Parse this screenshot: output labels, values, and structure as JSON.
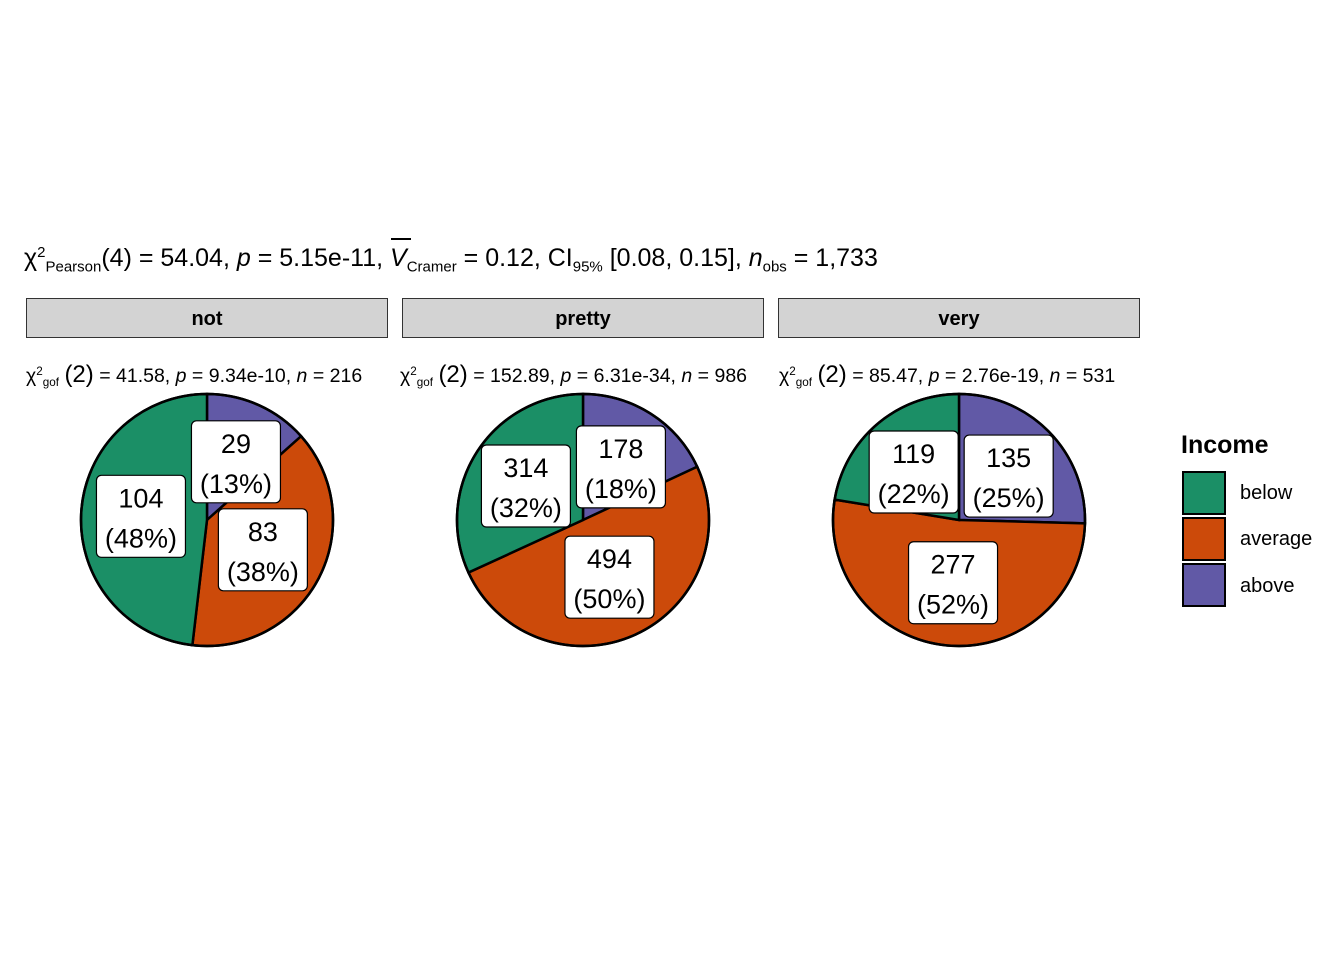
{
  "chart_data": {
    "type": "pie",
    "subtitle": {
      "stat_symbol": "χ",
      "stat_sup": "2",
      "stat_sub": "Pearson",
      "df": "(4)",
      "stat_value": " = 54.04, ",
      "p_label": "p",
      "p_value": " = 5.15e-11, ",
      "effect_symbol": "V",
      "effect_sub": "Cramer",
      "effect_value": " = 0.12, CI",
      "ci_sub": "95%",
      "ci_value": " [0.08, 0.15], ",
      "n_label": "n",
      "n_sub": "obs",
      "n_value": " = 1,733"
    },
    "legend": {
      "title": "Income",
      "placement": "right",
      "entries": [
        "below",
        "average",
        "above"
      ]
    },
    "colors": {
      "below": "#1B8F66",
      "average": "#CC4A0A",
      "above": "#6159A6"
    },
    "facets": [
      {
        "name": "not",
        "stat": {
          "chi": "χ",
          "sup": "2",
          "sub": "gof",
          "df": "(2)",
          "value": " = 41.58,  ",
          "p": "p",
          "p_value": " = 9.34e-10,  ",
          "n": "n",
          "n_value": " = 216"
        },
        "slices": [
          {
            "category": "below",
            "count": 104,
            "percent": 48,
            "label": [
              "104",
              "(48%)"
            ]
          },
          {
            "category": "average",
            "count": 83,
            "percent": 38,
            "label": [
              "83",
              "(38%)"
            ]
          },
          {
            "category": "above",
            "count": 29,
            "percent": 13,
            "label": [
              "29",
              "(13%)"
            ]
          }
        ]
      },
      {
        "name": "pretty",
        "stat": {
          "chi": "χ",
          "sup": "2",
          "sub": "gof",
          "df": "(2)",
          "value": " = 152.89,  ",
          "p": "p",
          "p_value": " = 6.31e-34,  ",
          "n": "n",
          "n_value": " = 986"
        },
        "slices": [
          {
            "category": "below",
            "count": 314,
            "percent": 32,
            "label": [
              "314",
              "(32%)"
            ]
          },
          {
            "category": "average",
            "count": 494,
            "percent": 50,
            "label": [
              "494",
              "(50%)"
            ]
          },
          {
            "category": "above",
            "count": 178,
            "percent": 18,
            "label": [
              "178",
              "(18%)"
            ]
          }
        ]
      },
      {
        "name": "very",
        "stat": {
          "chi": "χ",
          "sup": "2",
          "sub": "gof",
          "df": "(2)",
          "value": " = 85.47,  ",
          "p": "p",
          "p_value": " = 2.76e-19,  ",
          "n": "n",
          "n_value": " = 531"
        },
        "slices": [
          {
            "category": "below",
            "count": 119,
            "percent": 22,
            "label": [
              "119",
              "(22%)"
            ]
          },
          {
            "category": "average",
            "count": 277,
            "percent": 52,
            "label": [
              "277",
              "(52%)"
            ]
          },
          {
            "category": "above",
            "count": 135,
            "percent": 25,
            "label": [
              "135",
              "(25%)"
            ]
          }
        ]
      }
    ]
  }
}
